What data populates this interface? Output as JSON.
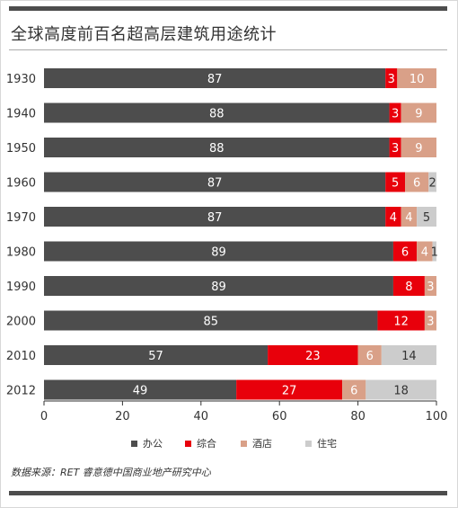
{
  "chart_data": {
    "type": "bar",
    "orientation": "horizontal",
    "stacked": true,
    "title": "全球高度前百名超高层建筑用途统计",
    "categories": [
      "1930",
      "1940",
      "1950",
      "1960",
      "1970",
      "1980",
      "1990",
      "2000",
      "2010",
      "2012"
    ],
    "series": [
      {
        "name": "办公",
        "color": "#4d4d4d",
        "label_color": "#ffffff",
        "values": [
          87,
          88,
          88,
          87,
          87,
          89,
          89,
          85,
          57,
          49
        ]
      },
      {
        "name": "综合",
        "color": "#e8000b",
        "label_color": "#ffffff",
        "values": [
          3,
          3,
          3,
          5,
          4,
          6,
          8,
          12,
          23,
          27
        ]
      },
      {
        "name": "酒店",
        "color": "#d9a088",
        "label_color": "#ffffff",
        "values": [
          10,
          9,
          9,
          6,
          4,
          4,
          3,
          3,
          6,
          6
        ]
      },
      {
        "name": "住宅",
        "color": "#cccccc",
        "label_color": "#333333",
        "values": [
          0,
          0,
          0,
          2,
          5,
          1,
          0,
          0,
          14,
          18
        ]
      }
    ],
    "xlim": [
      0,
      100
    ],
    "xticks": [
      0,
      20,
      40,
      60,
      80,
      100
    ],
    "legend_position": "bottom",
    "grid": false
  },
  "source": "数据来源：RET 睿意德中国商业地产研究中心"
}
